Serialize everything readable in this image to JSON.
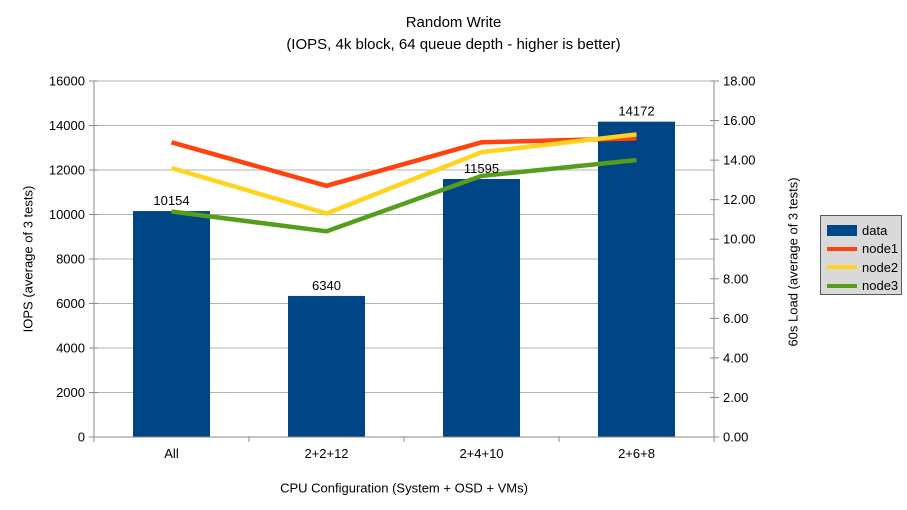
{
  "title": "Random Write",
  "subtitle": "(IOPS, 4k block, 64 queue depth - higher is better)",
  "chart_data": {
    "type": "bar+line",
    "categories": [
      "All",
      "2+2+12",
      "2+4+10",
      "2+6+8"
    ],
    "xlabel": "CPU Configuration (System + OSD + VMs)",
    "left_axis": {
      "label": "IOPS (average of 3 tests)",
      "min": 0,
      "max": 16000,
      "step": 2000,
      "decimals": 0
    },
    "right_axis": {
      "label": "60s Load (average of 3 tests)",
      "min": 0,
      "max": 18,
      "step": 2,
      "decimals": 2
    },
    "bar_series": {
      "name": "data",
      "axis": "left",
      "color": "#004586",
      "values": [
        10154,
        6340,
        11595,
        14172
      ],
      "labels": [
        "10154",
        "6340",
        "11595",
        "14172"
      ]
    },
    "line_series": [
      {
        "name": "node1",
        "axis": "right",
        "color": "#FF420E",
        "values": [
          14.9,
          12.7,
          14.9,
          15.1
        ]
      },
      {
        "name": "node2",
        "axis": "right",
        "color": "#FFD320",
        "values": [
          13.6,
          11.3,
          14.4,
          15.3
        ]
      },
      {
        "name": "node3",
        "axis": "right",
        "color": "#579D1C",
        "values": [
          11.4,
          10.4,
          13.2,
          14.0
        ]
      }
    ],
    "legend": {
      "entries": [
        "data",
        "node1",
        "node2",
        "node3"
      ],
      "position": "right"
    },
    "grid": true
  },
  "colors": {
    "background": "#ffffff",
    "grid": "#b3b3b3",
    "axis": "#888888",
    "text": "#000000",
    "legend_bg": "#d9d9d9",
    "legend_border": "#595959"
  }
}
